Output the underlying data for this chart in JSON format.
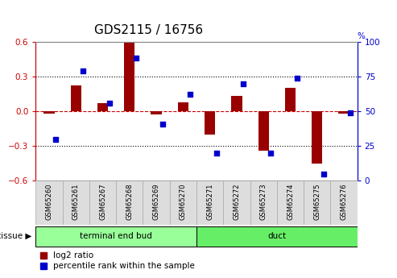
{
  "title": "GDS2115 / 16756",
  "samples": [
    "GSM65260",
    "GSM65261",
    "GSM65267",
    "GSM65268",
    "GSM65269",
    "GSM65270",
    "GSM65271",
    "GSM65272",
    "GSM65273",
    "GSM65274",
    "GSM65275",
    "GSM65276"
  ],
  "log2_ratio": [
    -0.02,
    0.22,
    0.07,
    0.6,
    -0.03,
    0.08,
    -0.2,
    0.13,
    -0.34,
    0.2,
    -0.45,
    -0.02
  ],
  "percentile_rank": [
    30,
    79,
    56,
    88,
    41,
    62,
    20,
    70,
    20,
    74,
    5,
    49
  ],
  "ylim_left": [
    -0.6,
    0.6
  ],
  "ylim_right": [
    0,
    100
  ],
  "bar_color": "#990000",
  "dot_color": "#0000cc",
  "zero_line_color": "#cc0000",
  "grid_color": "#000000",
  "tissue_groups": [
    {
      "label": "terminal end bud",
      "start": 0,
      "end": 5,
      "color": "#99ff99"
    },
    {
      "label": "duct",
      "start": 6,
      "end": 11,
      "color": "#66ee66"
    }
  ],
  "tissue_label": "tissue",
  "legend_log2": "log2 ratio",
  "legend_pct": "percentile rank within the sample",
  "title_fontsize": 11,
  "tick_fontsize": 7.5,
  "sample_fontsize": 6,
  "legend_fontsize": 7.5
}
